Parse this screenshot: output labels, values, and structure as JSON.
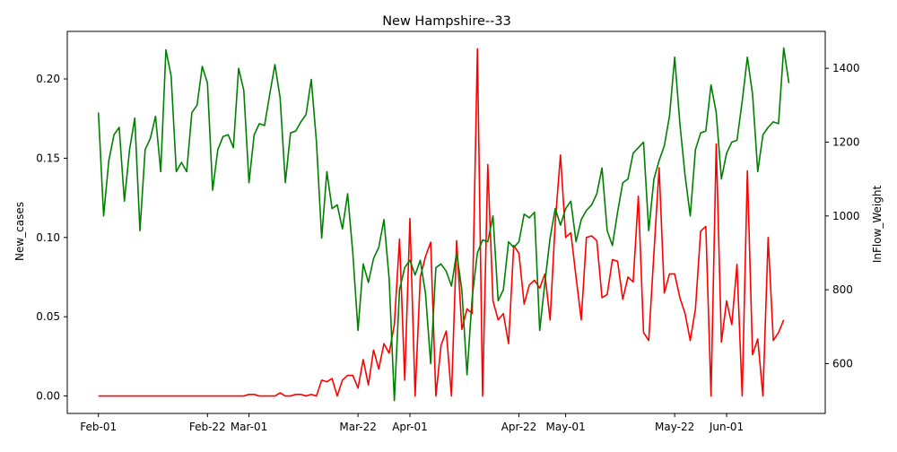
{
  "chart_data": {
    "type": "line",
    "title": "New Hampshire--33",
    "xlabel": "",
    "ylabel": "New_cases",
    "y2label": "InFlow_Weight",
    "x_start": "2020-02-01",
    "x_end": "2020-06-14",
    "xlim": [
      "2020-01-26",
      "2020-06-20"
    ],
    "ylim": [
      -0.011,
      0.23
    ],
    "y2lim": [
      465,
      1500
    ],
    "x_ticks": [
      {
        "date": "2020-02-01",
        "label": "Feb-01"
      },
      {
        "date": "2020-02-22",
        "label": "Feb-22"
      },
      {
        "date": "2020-03-01",
        "label": "Mar-01"
      },
      {
        "date": "2020-03-22",
        "label": "Mar-22"
      },
      {
        "date": "2020-04-01",
        "label": "Apr-01"
      },
      {
        "date": "2020-04-22",
        "label": "Apr-22"
      },
      {
        "date": "2020-05-01",
        "label": "May-01"
      },
      {
        "date": "2020-05-22",
        "label": "May-22"
      },
      {
        "date": "2020-06-01",
        "label": "Jun-01"
      }
    ],
    "y_ticks": [
      "0.00",
      "0.05",
      "0.10",
      "0.15",
      "0.20"
    ],
    "y2_ticks": [
      "600",
      "800",
      "1000",
      "1200",
      "1400"
    ],
    "grid": false,
    "legend": "none",
    "series": [
      {
        "axis": "left",
        "color": "#ff0000",
        "values": [
          0,
          0,
          0,
          0,
          0,
          0,
          0,
          0,
          0,
          0,
          0,
          0,
          0,
          0,
          0,
          0,
          0,
          0,
          0,
          0,
          0,
          0,
          0,
          0,
          0,
          0,
          0,
          0,
          0,
          0.001,
          0.001,
          0,
          0,
          0,
          0,
          0.002,
          0,
          0,
          0.001,
          0.001,
          0,
          0.001,
          0,
          0.01,
          0.009,
          0.011,
          0,
          0.01,
          0.013,
          0.013,
          0.005,
          0.023,
          0.007,
          0.029,
          0.017,
          0.033,
          0.027,
          0.045,
          0.099,
          0.01,
          0.112,
          0,
          0.075,
          0.088,
          0.097,
          0,
          0.032,
          0.041,
          0,
          0.098,
          0.042,
          0.055,
          0.052,
          0.219,
          0,
          0.146,
          0.06,
          0.048,
          0.052,
          0.033,
          0.095,
          0.09,
          0.058,
          0.07,
          0.073,
          0.068,
          0.077,
          0.048,
          0.11,
          0.152,
          0.1,
          0.103,
          0.075,
          0.048,
          0.1,
          0.101,
          0.098,
          0.062,
          0.064,
          0.086,
          0.085,
          0.061,
          0.075,
          0.072,
          0.126,
          0.04,
          0.035,
          0.09,
          0.144,
          0.065,
          0.077,
          0.077,
          0.062,
          0.052,
          0.035,
          0.055,
          0.104,
          0.107,
          0,
          0.159,
          0.034,
          0.06,
          0.045,
          0.083,
          0,
          0.142,
          0.026,
          0.036,
          0,
          0.1,
          0.035,
          0.04,
          0.048
        ]
      },
      {
        "axis": "right",
        "color": "#008000",
        "values": [
          1280,
          1000,
          1150,
          1220,
          1240,
          1040,
          1180,
          1265,
          960,
          1180,
          1210,
          1270,
          1120,
          1450,
          1380,
          1120,
          1145,
          1120,
          1280,
          1300,
          1405,
          1360,
          1070,
          1180,
          1215,
          1220,
          1185,
          1400,
          1340,
          1090,
          1220,
          1250,
          1245,
          1330,
          1410,
          1320,
          1090,
          1225,
          1230,
          1255,
          1275,
          1370,
          1200,
          940,
          1120,
          1020,
          1030,
          965,
          1060,
          900,
          690,
          870,
          820,
          885,
          915,
          990,
          830,
          500,
          800,
          860,
          880,
          840,
          880,
          790,
          600,
          860,
          870,
          850,
          810,
          900,
          800,
          570,
          780,
          900,
          935,
          930,
          1000,
          770,
          800,
          930,
          915,
          930,
          1005,
          995,
          1010,
          690,
          820,
          940,
          1020,
          975,
          1020,
          1040,
          930,
          990,
          1015,
          1030,
          1060,
          1130,
          960,
          920,
          1010,
          1090,
          1100,
          1170,
          1185,
          1200,
          960,
          1100,
          1150,
          1190,
          1270,
          1430,
          1250,
          1110,
          1000,
          1180,
          1225,
          1230,
          1355,
          1280,
          1100,
          1170,
          1200,
          1205,
          1310,
          1430,
          1330,
          1120,
          1220,
          1240,
          1255,
          1250,
          1455,
          1360
        ]
      }
    ]
  }
}
